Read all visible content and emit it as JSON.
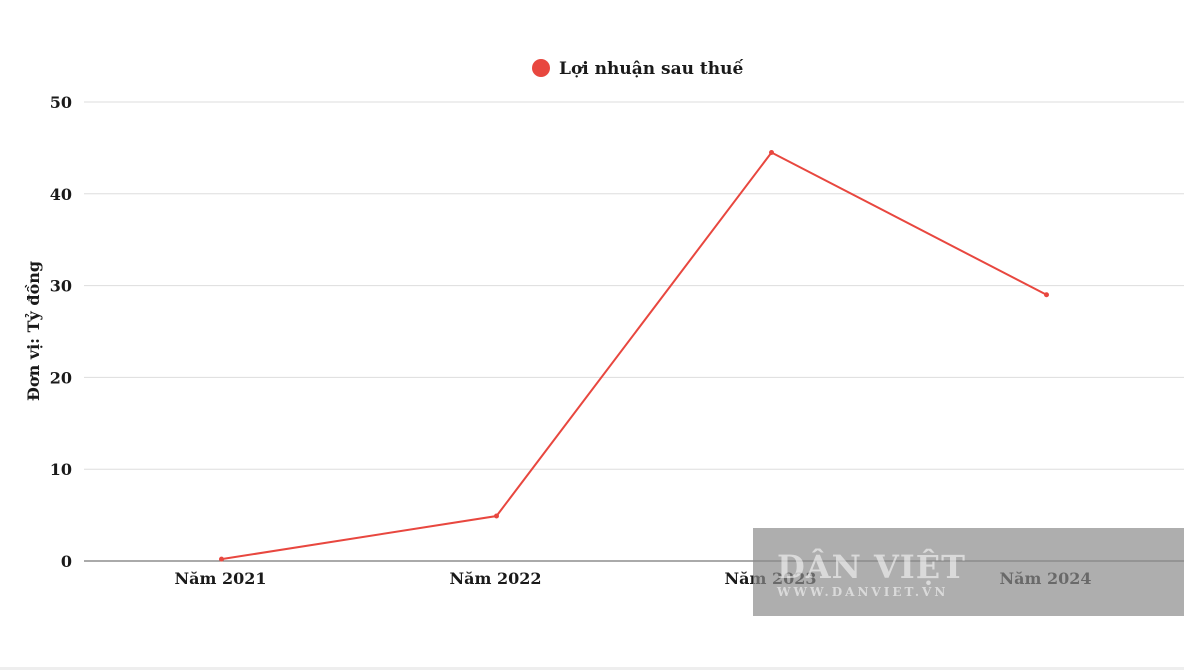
{
  "chart_data": {
    "type": "line",
    "categories": [
      "Năm 2021",
      "Năm 2022",
      "Năm 2023",
      "Năm 2024"
    ],
    "series": [
      {
        "name": "Lợi nhuận sau thuế",
        "values": [
          0.2,
          4.9,
          44.5,
          29.0
        ],
        "color": "#e8473f"
      }
    ],
    "ylabel": "Đơn vị: Tỷ đồng",
    "ylim": [
      0,
      50
    ],
    "yticks": [
      0,
      10,
      20,
      30,
      40,
      50
    ],
    "grid": true,
    "legend_position": "top-center"
  },
  "watermark": {
    "main": "DÂN VIỆT",
    "sub": "WWW.DANVIET.VN"
  }
}
